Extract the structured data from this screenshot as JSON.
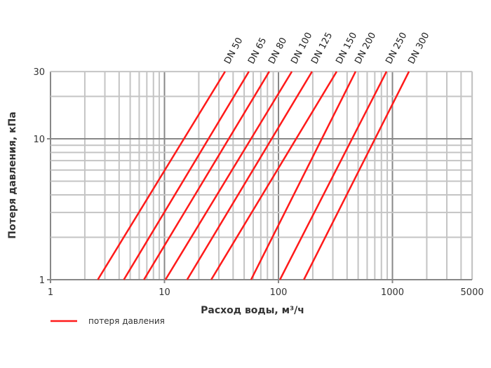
{
  "chart_data": {
    "type": "line",
    "xlabel": "Расход воды, м³/ч",
    "ylabel": "Потеря давления, кПа",
    "xscale": "log",
    "yscale": "log",
    "xlim": [
      1,
      5000
    ],
    "ylim": [
      1,
      30
    ],
    "xticks": [
      "1",
      "10",
      "100",
      "1000",
      "5000"
    ],
    "xtick_values": [
      1,
      10,
      100,
      1000,
      5000
    ],
    "yticks": [
      "1",
      "10",
      "30"
    ],
    "ytick_values": [
      1,
      10,
      30
    ],
    "grid": true,
    "legend": {
      "position": "bottom-left",
      "label": "потеря давления"
    },
    "line_color": "#ff1a1a",
    "series": [
      {
        "name": "DN 50",
        "x": [
          2.6,
          34
        ],
        "y": [
          1,
          30
        ]
      },
      {
        "name": "DN 65",
        "x": [
          4.4,
          55
        ],
        "y": [
          1,
          30
        ]
      },
      {
        "name": "DN 80",
        "x": [
          6.6,
          83
        ],
        "y": [
          1,
          30
        ]
      },
      {
        "name": "DN 100",
        "x": [
          10.2,
          131
        ],
        "y": [
          1,
          30
        ]
      },
      {
        "name": "DN 125",
        "x": [
          15.8,
          197
        ],
        "y": [
          1,
          30
        ]
      },
      {
        "name": "DN 150",
        "x": [
          25.7,
          324
        ],
        "y": [
          1,
          30
        ]
      },
      {
        "name": "DN 200",
        "x": [
          57.5,
          475
        ],
        "y": [
          1,
          30
        ]
      },
      {
        "name": "DN 250",
        "x": [
          103,
          887
        ],
        "y": [
          1,
          30
        ]
      },
      {
        "name": "DN 300",
        "x": [
          167,
          1396
        ],
        "y": [
          1,
          30
        ]
      }
    ]
  }
}
